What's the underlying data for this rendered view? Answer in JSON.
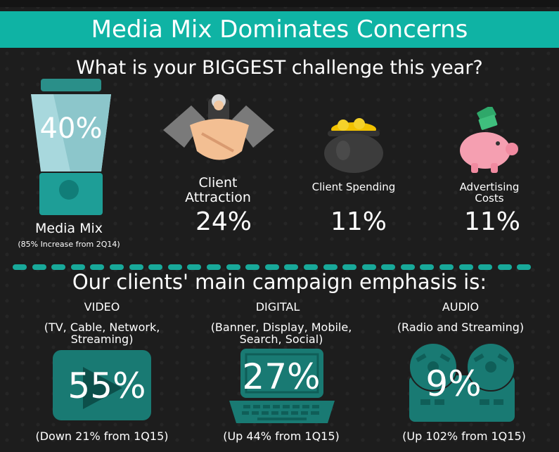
{
  "header": {
    "title": "Media Mix Dominates Concerns"
  },
  "question": "What is your BIGGEST challenge this year?",
  "challenges": [
    {
      "label": "Media Mix",
      "sublabel": "(85% Increase from 2Q14)",
      "value": "40%",
      "icon": "blender-icon"
    },
    {
      "label_line1": "Client",
      "label_line2": "Attraction",
      "value": "24%",
      "icon": "handshake-icon"
    },
    {
      "label": "Client Spending",
      "value": "11%",
      "icon": "pot-of-gold-icon"
    },
    {
      "label_line1": "Advertising",
      "label_line2": "Costs",
      "value": "11%",
      "icon": "piggy-bank-icon"
    }
  ],
  "emphasis": {
    "title": "Our clients' main campaign emphasis is:",
    "items": [
      {
        "label": "VIDEO",
        "desc_line1": "(TV, Cable, Network,",
        "desc_line2": "Streaming)",
        "value": "55%",
        "change": "(Down 21% from 1Q15)",
        "icon": "play-icon"
      },
      {
        "label": "DIGITAL",
        "desc_line1": "(Banner, Display, Mobile,",
        "desc_line2": "Search, Social)",
        "value": "27%",
        "change": "(Up 44% from 1Q15)",
        "icon": "laptop-icon"
      },
      {
        "label": "AUDIO",
        "desc_line1": "(Radio and Streaming)",
        "value": "9%",
        "change": "(Up 102% from 1Q15)",
        "icon": "reel-to-reel-icon"
      }
    ]
  },
  "colors": {
    "accent": "#0fb3a4",
    "teal_dark": "#197a73",
    "background": "#1e1e1e"
  }
}
